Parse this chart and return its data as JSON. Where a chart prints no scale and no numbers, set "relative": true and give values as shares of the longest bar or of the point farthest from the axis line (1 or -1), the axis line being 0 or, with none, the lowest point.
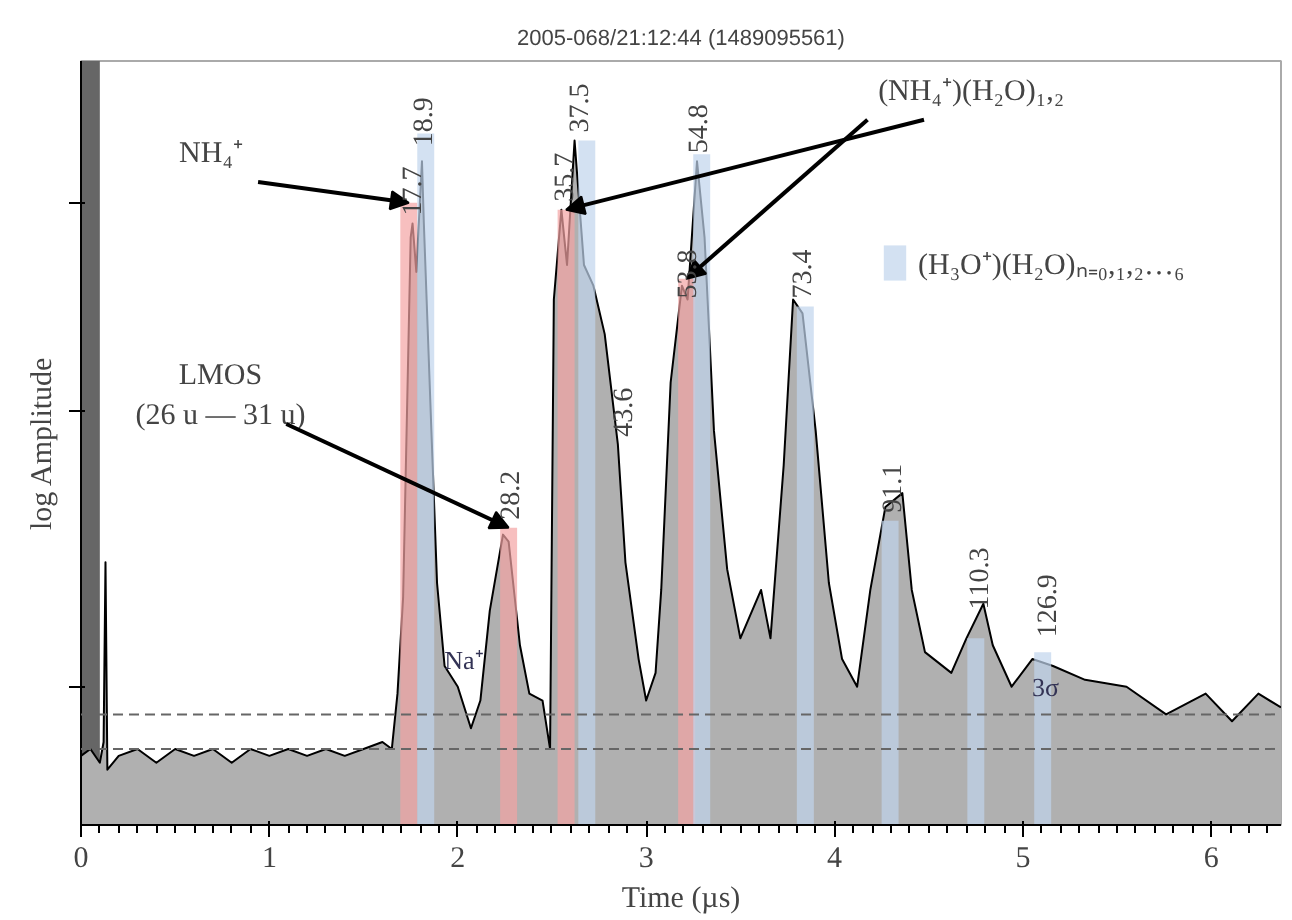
{
  "chart_data": {
    "type": "area",
    "title": "2005-068/21:12:44 (1489095561)",
    "xlabel": "Time (µs)",
    "ylabel": "log Amplitude",
    "relative": true,
    "xlim": [
      0,
      6.37
    ],
    "xticks": [
      0,
      1,
      2,
      3,
      4,
      5,
      6
    ],
    "grid": false,
    "legend": "top right",
    "series": [
      {
        "color": "#b0b0b0",
        "x": [
          0.0,
          0.05,
          0.1,
          0.12,
          0.13,
          0.14,
          0.2,
          0.3,
          0.4,
          0.5,
          0.6,
          0.7,
          0.8,
          0.9,
          1.0,
          1.1,
          1.2,
          1.3,
          1.4,
          1.5,
          1.6,
          1.65,
          1.68,
          1.71,
          1.75,
          1.76,
          1.78,
          1.81,
          1.82,
          1.86,
          1.89,
          1.93,
          2.0,
          2.07,
          2.12,
          2.17,
          2.24,
          2.27,
          2.33,
          2.38,
          2.45,
          2.49,
          2.51,
          2.55,
          2.58,
          2.62,
          2.67,
          2.72,
          2.78,
          2.85,
          2.89,
          2.96,
          3.0,
          3.05,
          3.08,
          3.13,
          3.19,
          3.22,
          3.27,
          3.31,
          3.36,
          3.43,
          3.5,
          3.61,
          3.66,
          3.73,
          3.78,
          3.83,
          3.9,
          3.97,
          4.04,
          4.12,
          4.19,
          4.27,
          4.36,
          4.41,
          4.48,
          4.62,
          4.7,
          4.79,
          4.84,
          4.94,
          5.05,
          5.16,
          5.33,
          5.55,
          5.76,
          5.97,
          6.11,
          6.25,
          6.37
        ],
        "values": [
          0.1,
          0.11,
          0.09,
          0.12,
          0.38,
          0.08,
          0.1,
          0.11,
          0.09,
          0.11,
          0.1,
          0.11,
          0.09,
          0.11,
          0.1,
          0.11,
          0.1,
          0.11,
          0.1,
          0.11,
          0.12,
          0.11,
          0.19,
          0.33,
          0.85,
          0.87,
          0.8,
          0.96,
          0.87,
          0.57,
          0.35,
          0.23,
          0.2,
          0.14,
          0.18,
          0.31,
          0.42,
          0.41,
          0.26,
          0.19,
          0.18,
          0.11,
          0.76,
          0.89,
          0.81,
          0.99,
          0.81,
          0.78,
          0.71,
          0.55,
          0.38,
          0.24,
          0.18,
          0.22,
          0.34,
          0.64,
          0.78,
          0.76,
          0.96,
          0.85,
          0.57,
          0.37,
          0.27,
          0.34,
          0.27,
          0.52,
          0.76,
          0.74,
          0.57,
          0.35,
          0.24,
          0.2,
          0.34,
          0.46,
          0.48,
          0.34,
          0.25,
          0.22,
          0.27,
          0.32,
          0.26,
          0.2,
          0.24,
          0.23,
          0.21,
          0.2,
          0.16,
          0.19,
          0.15,
          0.19,
          0.17
        ]
      },
      {
        "type": "bar",
        "color": "#f4a4a4",
        "x": [
          1.74,
          2.27,
          2.575,
          3.215
        ],
        "values": [
          0.9,
          0.43,
          0.89,
          0.79
        ]
      },
      {
        "type": "bar",
        "name": "(H₃O⁺)(H₂O)ₙ₌₀,₁,₂…₆",
        "color": "#c0d4ec",
        "x": [
          1.83,
          2.685,
          3.295,
          3.845,
          4.295,
          4.75,
          5.105
        ],
        "values": [
          1.0,
          0.99,
          0.97,
          0.75,
          0.44,
          0.27,
          0.25
        ]
      }
    ],
    "bands": [
      {
        "axis": "x",
        "from": 0,
        "to": 0.1,
        "color": "#666666"
      }
    ],
    "ref_lines": [
      {
        "axis": "y",
        "value": 0.16,
        "color": "#666666",
        "line_style": "dashed"
      },
      {
        "axis": "y",
        "value": 0.11,
        "color": "#666666",
        "line_style": "dashed"
      }
    ],
    "annotations": [
      {
        "text": "NH₄⁺",
        "x": 1.74,
        "y": 0.9
      },
      {
        "text": "LMOS\n(26 u — 31 u)",
        "x": 2.27,
        "y": 0.43
      },
      {
        "text": "(NH₄⁺)(H₂O)₁,₂",
        "x": 2.575,
        "y": 0.89
      },
      {
        "text": "17.7",
        "x": 1.75,
        "y": 0.87
      },
      {
        "text": "18.9",
        "x": 1.81,
        "y": 0.97
      },
      {
        "text": "28.2",
        "x": 2.27,
        "y": 0.43
      },
      {
        "text": "35.7",
        "x": 2.56,
        "y": 0.89
      },
      {
        "text": "37.5",
        "x": 2.64,
        "y": 0.99
      },
      {
        "text": "43.6",
        "x": 2.87,
        "y": 0.55
      },
      {
        "text": "53.8",
        "x": 3.21,
        "y": 0.75
      },
      {
        "text": "54.8",
        "x": 3.27,
        "y": 0.96
      },
      {
        "text": "73.4",
        "x": 3.82,
        "y": 0.75
      },
      {
        "text": "91.1",
        "x": 4.3,
        "y": 0.44
      },
      {
        "text": "110.3",
        "x": 4.76,
        "y": 0.3
      },
      {
        "text": "126.9",
        "x": 5.12,
        "y": 0.26
      },
      {
        "text": "Na⁺",
        "x": 2.03,
        "y": 0.2
      },
      {
        "text": "3σ",
        "x": 5.12,
        "y": 0.16
      }
    ]
  }
}
